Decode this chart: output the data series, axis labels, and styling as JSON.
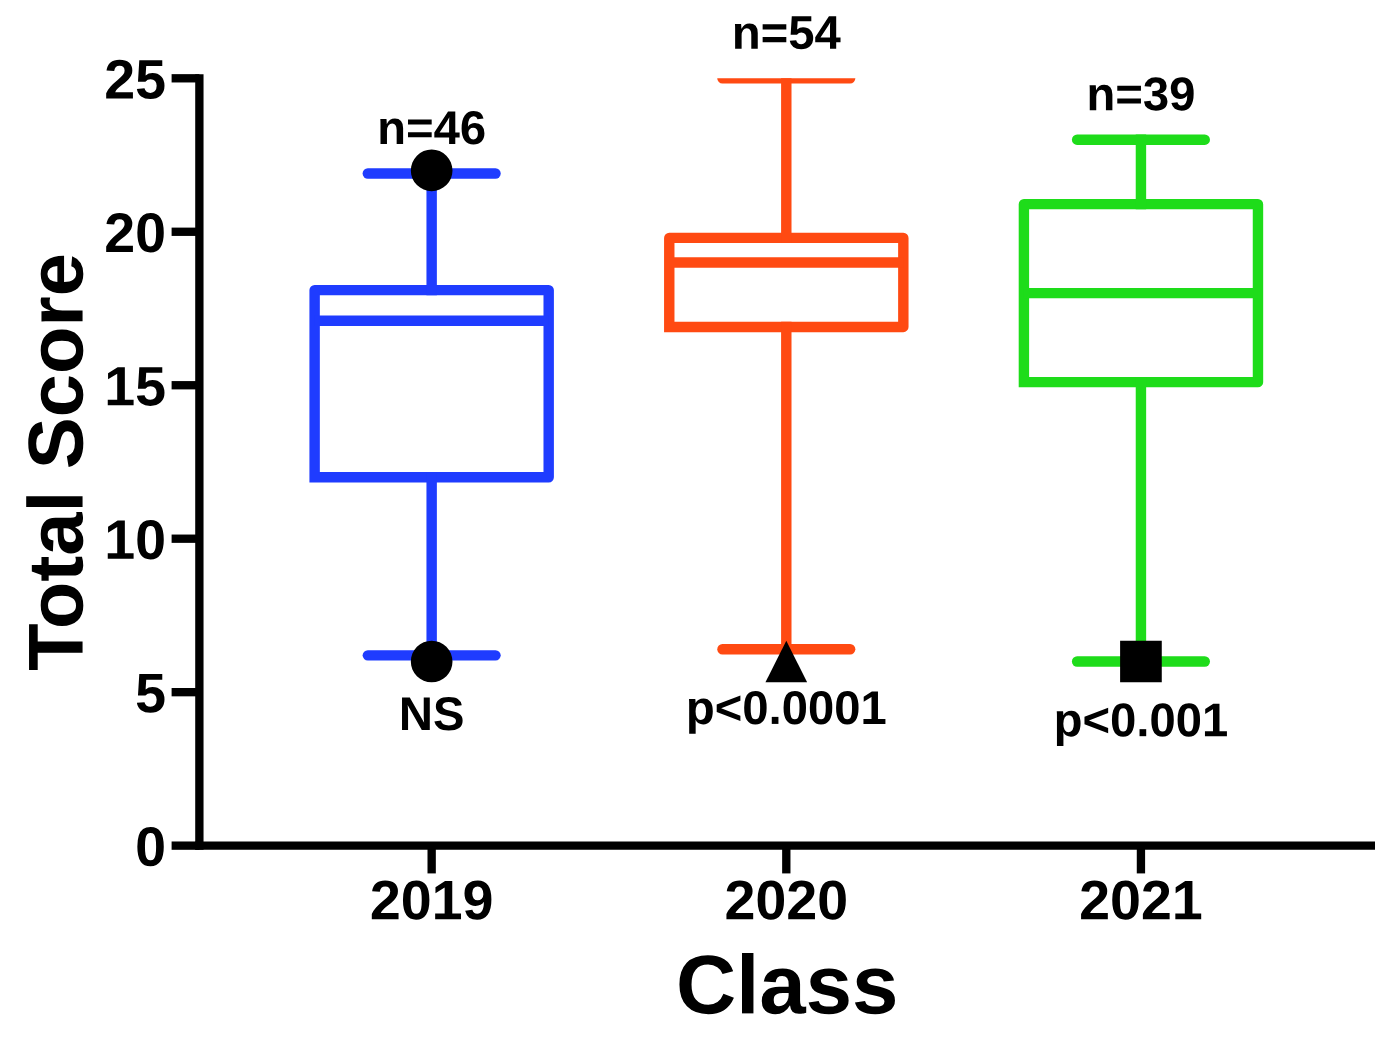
{
  "chart_data": {
    "type": "box",
    "xlabel": "Class",
    "ylabel": "Total Score",
    "categories": [
      "2019",
      "2020",
      "2021"
    ],
    "series": [
      {
        "color": "#1f3cff",
        "marker": "circle",
        "boxes": [
          {
            "low": 6.2,
            "q1": 12.0,
            "median": 17.1,
            "q3": 18.1,
            "high": 21.9,
            "outliers": [
              22.0,
              6.0
            ]
          },
          null,
          null
        ]
      },
      {
        "color": "#ff4a12",
        "marker": "triangle",
        "boxes": [
          null,
          {
            "low": 6.4,
            "q1": 16.9,
            "median": 19.0,
            "q3": 19.8,
            "high": 25.0,
            "outliers": [
              6.0
            ]
          },
          null
        ]
      },
      {
        "color": "#1edc1a",
        "marker": "square",
        "boxes": [
          null,
          null,
          {
            "low": 6.0,
            "q1": 15.1,
            "median": 18.0,
            "q3": 20.9,
            "high": 23.0,
            "outliers": [
              6.0
            ]
          }
        ]
      }
    ],
    "ylim": [
      0,
      25
    ],
    "yticks": [
      0,
      5,
      10,
      15,
      20,
      25
    ],
    "grid": false,
    "annotations": [
      "n=46",
      "n=54",
      "n=39",
      "NS",
      "p<0.0001",
      "p<0.001"
    ]
  }
}
